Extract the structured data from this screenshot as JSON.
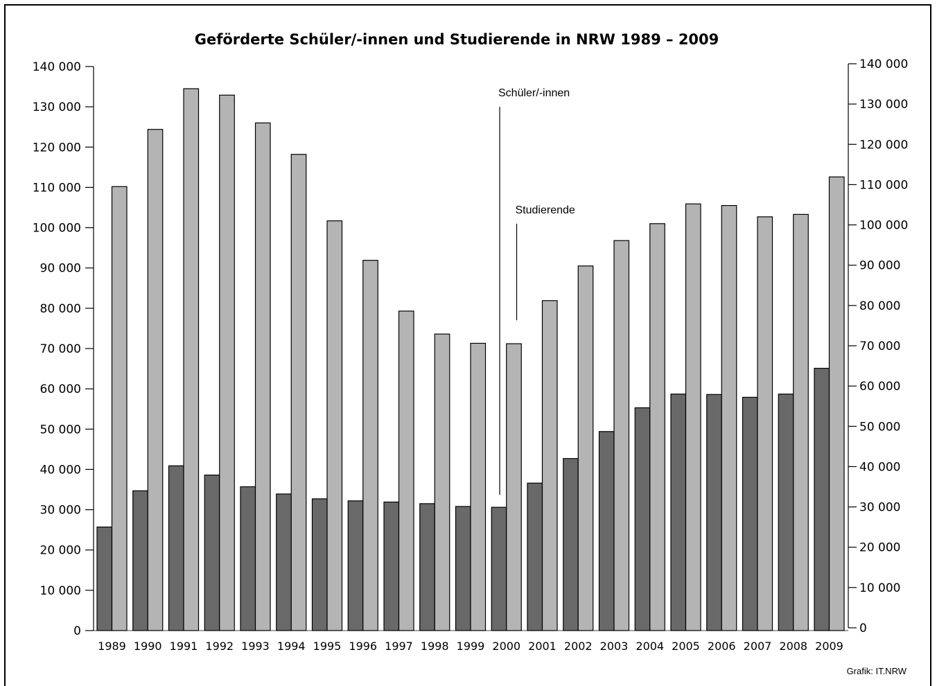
{
  "chart_data": {
    "type": "bar",
    "title": "Geförderte Schüler/-innen und Studierende in NRW 1989 – 2009",
    "categories": [
      "1989",
      "1990",
      "1991",
      "1992",
      "1993",
      "1994",
      "1995",
      "1996",
      "1997",
      "1998",
      "1999",
      "2000",
      "2001",
      "2002",
      "2003",
      "2004",
      "2005",
      "2006",
      "2007",
      "2008",
      "2009"
    ],
    "series": [
      {
        "name": "Schüler/-innen",
        "color": "#696969",
        "values": [
          25700,
          34700,
          40900,
          38600,
          35700,
          33900,
          32700,
          32200,
          31900,
          31500,
          30800,
          30600,
          36600,
          42700,
          49400,
          55300,
          58700,
          58600,
          57900,
          58700,
          65100
        ]
      },
      {
        "name": "Studierende",
        "color": "#b4b4b4",
        "values": [
          110200,
          124400,
          134500,
          132900,
          126000,
          118200,
          101700,
          91900,
          79300,
          73600,
          71300,
          71200,
          81900,
          90500,
          96800,
          101000,
          105900,
          105500,
          102700,
          103300,
          112600
        ]
      }
    ],
    "ylim": [
      0,
      140000
    ],
    "yticks": [
      0,
      10000,
      20000,
      30000,
      40000,
      50000,
      60000,
      70000,
      80000,
      90000,
      100000,
      110000,
      120000,
      130000,
      140000
    ],
    "ytick_labels": [
      "0",
      "10 000",
      "20 000",
      "30 000",
      "40 000",
      "50 000",
      "60 000",
      "70 000",
      "80 000",
      "90 000",
      "100 000",
      "110 000",
      "120 000",
      "130 000",
      "140 000"
    ],
    "grid": false,
    "legend": "inline annotations",
    "annotations": [
      {
        "text": "Schüler/-innen",
        "series": "Schüler/-innen",
        "category": "2000",
        "pointer_from": 130000,
        "pointer_to": 33700
      },
      {
        "text": "Studierende",
        "series": "Studierende",
        "category": "2000",
        "pointer_from": 101000,
        "pointer_to": 77000
      }
    ],
    "xlabel": "",
    "ylabel": ""
  },
  "credit": "Grafik: IT.NRW"
}
